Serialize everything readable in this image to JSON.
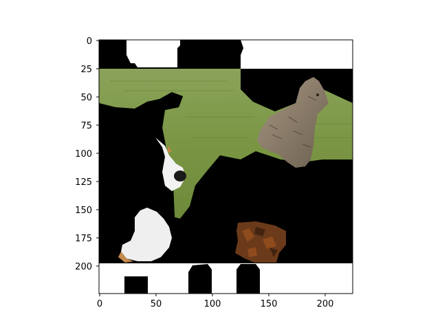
{
  "figure": {
    "xlim": [
      0,
      224
    ],
    "ylim": [
      224,
      0
    ],
    "x_ticks": [
      0,
      50,
      100,
      150,
      200
    ],
    "y_ticks": [
      0,
      25,
      50,
      75,
      100,
      125,
      150,
      175,
      200
    ],
    "x_tick_labels": [
      "0",
      "50",
      "100",
      "150",
      "200"
    ],
    "y_tick_labels": [
      "0",
      "25",
      "50",
      "75",
      "100",
      "125",
      "150",
      "175",
      "200"
    ]
  },
  "image": {
    "subject": "masked composite photo: dog and cat on grass with black and white occlusion patches",
    "colors": {
      "grass": "#7f9a48",
      "grass_dark": "#5f7a34",
      "mask_black": "#000000",
      "mask_white": "#ffffff",
      "cat_fur": "#8d7f6a",
      "dog_white": "#f2f2f2",
      "dog_black": "#111111",
      "brown_patch": "#6a3a1a"
    }
  }
}
